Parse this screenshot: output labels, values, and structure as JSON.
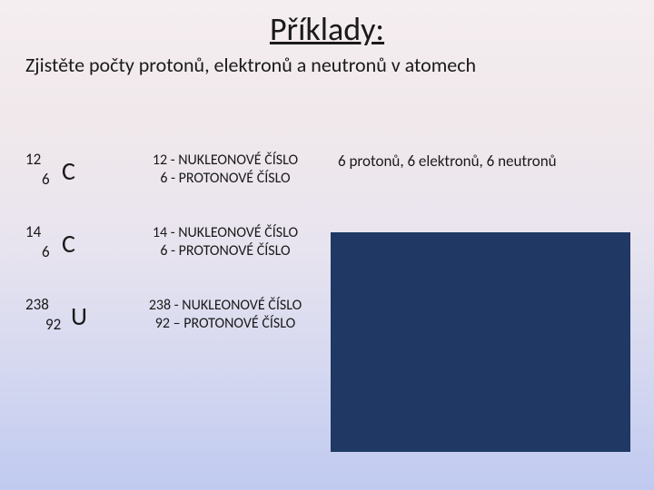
{
  "title": "Příklady:",
  "subtitle": "Zjistěte počty protonů, elektronů a neutronů v atomech",
  "rows": [
    {
      "mass": "12",
      "atomic": "6",
      "symbol": "C",
      "desc_line1": "12 - NUKLEONOVÉ ČÍSLO",
      "desc_line2": "6 - PROTONOVÉ ČÍSLO",
      "answer": "6 protonů, 6 elektronů, 6 neutronů"
    },
    {
      "mass": "14",
      "atomic": "6",
      "symbol": "C",
      "desc_line1": "14 - NUKLEONOVÉ ČÍSLO",
      "desc_line2": "6 - PROTONOVÉ ČÍSLO",
      "answer": ""
    },
    {
      "mass": "238",
      "atomic": "92",
      "symbol": "U",
      "desc_line1": "238 - NUKLEONOVÉ ČÍSLO",
      "desc_line2": "92 – PROTONOVÉ ČÍSLO",
      "answer": ""
    }
  ],
  "colors": {
    "bluebox": "#1f3864"
  }
}
